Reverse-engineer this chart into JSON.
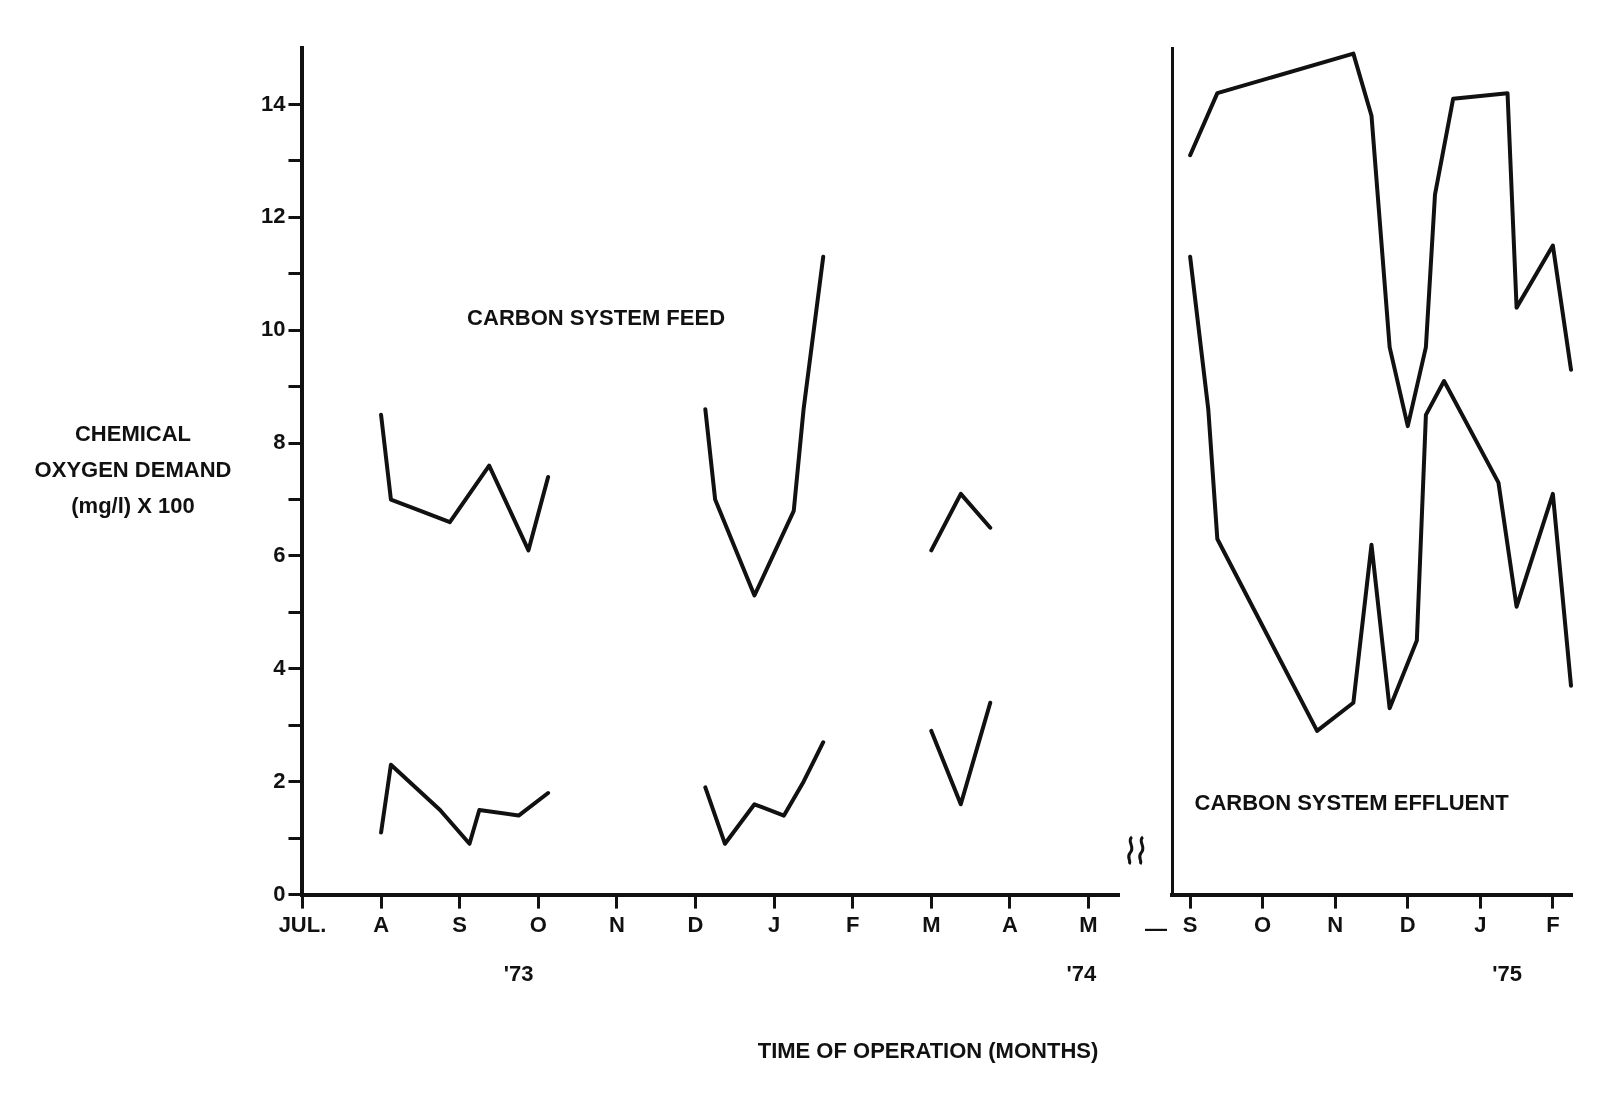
{
  "chart_data": [
    {
      "type": "line",
      "xlabel": "TIME OF OPERATION (MONTHS)",
      "ylabel": "CHEMICAL\nOXYGEN DEMAND\n(mg/l) X 100",
      "ylim": [
        0,
        15
      ],
      "categories": [
        "JUL.",
        null,
        null,
        null,
        null,
        null,
        null,
        null,
        "A",
        null,
        null,
        null,
        null,
        null,
        null,
        null,
        "S",
        null,
        null,
        null,
        null,
        null,
        null,
        null,
        "O",
        null,
        null,
        null,
        null,
        null,
        null,
        null,
        "N",
        null,
        null,
        null,
        null,
        null,
        null,
        null,
        "D",
        null,
        null,
        null,
        null,
        null,
        null,
        null,
        "J",
        null,
        null,
        null,
        null,
        null,
        null,
        null,
        "F",
        null,
        null,
        null,
        null,
        null,
        null,
        null,
        "M",
        null,
        null,
        null,
        null,
        null,
        null,
        null,
        "A",
        null,
        null,
        null,
        null,
        null,
        null,
        null,
        "M",
        null,
        null,
        null
      ],
      "yticks": [
        0,
        {
          "value": 1,
          "label": null
        },
        2,
        {
          "value": 3,
          "label": null
        },
        4,
        {
          "value": 5,
          "label": null
        },
        6,
        {
          "value": 7,
          "label": null
        },
        8,
        {
          "value": 9,
          "label": null
        },
        10,
        {
          "value": 11,
          "label": null
        },
        12,
        {
          "value": 13,
          "label": null
        },
        14
      ],
      "annotations": [
        "'73",
        "'74"
      ],
      "grid": false,
      "legend": false,
      "marker": "none",
      "line_style": "solid",
      "series": [
        {
          "name": "CARBON SYSTEM FEED",
          "color": "#111111",
          "values": [
            null,
            null,
            null,
            null,
            null,
            null,
            null,
            null,
            8.5,
            7.0,
            null,
            null,
            null,
            null,
            null,
            6.6,
            null,
            null,
            null,
            7.6,
            null,
            null,
            null,
            6.1,
            null,
            7.4,
            null,
            null,
            null,
            null,
            null,
            null,
            null,
            null,
            null,
            null,
            null,
            null,
            null,
            null,
            null,
            null,
            null,
            null,
            null,
            null,
            null,
            null,
            null,
            null,
            null,
            null,
            null,
            null,
            null,
            null,
            null,
            null,
            null,
            null,
            null,
            null,
            null,
            null,
            null,
            null,
            null,
            null,
            null,
            null,
            null,
            null,
            null,
            null,
            null,
            null,
            null,
            null,
            null,
            null,
            null,
            null,
            null,
            null
          ]
        },
        {
          "color": "#111111",
          "values": [
            null,
            null,
            null,
            null,
            null,
            null,
            null,
            null,
            null,
            null,
            null,
            null,
            null,
            null,
            null,
            null,
            null,
            null,
            null,
            null,
            null,
            null,
            null,
            null,
            null,
            null,
            null,
            null,
            null,
            null,
            null,
            null,
            null,
            null,
            null,
            null,
            null,
            null,
            null,
            null,
            null,
            8.6,
            7.0,
            null,
            null,
            null,
            5.3,
            null,
            null,
            null,
            6.8,
            8.6,
            null,
            11.3,
            null,
            null,
            null,
            null,
            null,
            null,
            null,
            null,
            null,
            null,
            null,
            null,
            null,
            null,
            null,
            null,
            null,
            null,
            null,
            null,
            null,
            null,
            null,
            null,
            null,
            null,
            null,
            null,
            null,
            null
          ]
        },
        {
          "color": "#111111",
          "values": [
            null,
            null,
            null,
            null,
            null,
            null,
            null,
            null,
            null,
            null,
            null,
            null,
            null,
            null,
            null,
            null,
            null,
            null,
            null,
            null,
            null,
            null,
            null,
            null,
            null,
            null,
            null,
            null,
            null,
            null,
            null,
            null,
            null,
            null,
            null,
            null,
            null,
            null,
            null,
            null,
            null,
            null,
            null,
            null,
            null,
            null,
            null,
            null,
            null,
            null,
            null,
            null,
            null,
            null,
            null,
            null,
            null,
            null,
            null,
            null,
            null,
            null,
            null,
            null,
            6.1,
            null,
            null,
            7.1,
            null,
            null,
            6.5,
            null,
            null,
            null,
            null,
            null,
            null,
            null,
            null,
            null,
            null,
            null,
            null,
            null
          ]
        },
        {
          "color": "#111111",
          "values": [
            null,
            null,
            null,
            null,
            null,
            null,
            null,
            null,
            1.1,
            2.3,
            null,
            null,
            null,
            null,
            1.5,
            null,
            null,
            0.9,
            1.5,
            null,
            null,
            null,
            1.4,
            null,
            null,
            1.8,
            null,
            null,
            null,
            null,
            null,
            null,
            null,
            null,
            null,
            null,
            null,
            null,
            null,
            null,
            null,
            null,
            null,
            null,
            null,
            null,
            null,
            null,
            null,
            null,
            null,
            null,
            null,
            null,
            null,
            null,
            null,
            null,
            null,
            null,
            null,
            null,
            null,
            null,
            null,
            null,
            null,
            null,
            null,
            null,
            null,
            null,
            null,
            null,
            null,
            null,
            null,
            null,
            null,
            null,
            null,
            null,
            null,
            null
          ]
        },
        {
          "color": "#111111",
          "values": [
            null,
            null,
            null,
            null,
            null,
            null,
            null,
            null,
            null,
            null,
            null,
            null,
            null,
            null,
            null,
            null,
            null,
            null,
            null,
            null,
            null,
            null,
            null,
            null,
            null,
            null,
            null,
            null,
            null,
            null,
            null,
            null,
            null,
            null,
            null,
            null,
            null,
            null,
            null,
            null,
            null,
            1.9,
            null,
            0.9,
            null,
            null,
            1.6,
            null,
            null,
            1.4,
            null,
            2.0,
            null,
            2.7,
            null,
            null,
            null,
            null,
            null,
            null,
            null,
            null,
            null,
            null,
            null,
            null,
            null,
            null,
            null,
            null,
            null,
            null,
            null,
            null,
            null,
            null,
            null,
            null,
            null,
            null,
            null,
            null,
            null,
            null
          ]
        },
        {
          "color": "#111111",
          "values": [
            null,
            null,
            null,
            null,
            null,
            null,
            null,
            null,
            null,
            null,
            null,
            null,
            null,
            null,
            null,
            null,
            null,
            null,
            null,
            null,
            null,
            null,
            null,
            null,
            null,
            null,
            null,
            null,
            null,
            null,
            null,
            null,
            null,
            null,
            null,
            null,
            null,
            null,
            null,
            null,
            null,
            null,
            null,
            null,
            null,
            null,
            null,
            null,
            null,
            null,
            null,
            null,
            null,
            null,
            null,
            null,
            null,
            null,
            null,
            null,
            null,
            null,
            null,
            null,
            2.9,
            null,
            null,
            1.6,
            null,
            null,
            3.4,
            null,
            null,
            null,
            null,
            null,
            null,
            null,
            null,
            null,
            null,
            null,
            null,
            null
          ]
        }
      ]
    },
    {
      "type": "line",
      "ylim": [
        0,
        15
      ],
      "tick_labels": "x",
      "categories": [
        null,
        null,
        "S",
        null,
        null,
        null,
        null,
        null,
        null,
        null,
        "O",
        null,
        null,
        null,
        null,
        null,
        null,
        null,
        "N",
        null,
        null,
        null,
        null,
        null,
        null,
        null,
        "D",
        null,
        null,
        null,
        null,
        null,
        null,
        null,
        "J",
        null,
        null,
        null,
        null,
        null,
        null,
        null,
        "F",
        null,
        null
      ],
      "yticks": [
        0,
        2,
        4,
        6,
        8,
        10,
        12,
        14
      ],
      "annotations": [
        "—",
        "'75"
      ],
      "grid": false,
      "legend": false,
      "marker": "none",
      "line_style": "solid",
      "series": [
        {
          "color": "#111111",
          "values": [
            null,
            null,
            13.1,
            null,
            null,
            14.2,
            null,
            null,
            null,
            null,
            null,
            null,
            null,
            null,
            null,
            null,
            null,
            null,
            null,
            null,
            14.9,
            null,
            13.8,
            null,
            9.7,
            null,
            8.3,
            null,
            9.7,
            12.4,
            null,
            14.1,
            null,
            null,
            null,
            null,
            null,
            14.2,
            10.4,
            null,
            null,
            null,
            11.5,
            null,
            9.3
          ]
        },
        {
          "name": "CARBON SYSTEM EFFLUENT",
          "color": "#111111",
          "values": [
            null,
            null,
            11.3,
            null,
            8.6,
            6.3,
            null,
            null,
            null,
            null,
            null,
            null,
            null,
            null,
            null,
            null,
            2.9,
            null,
            null,
            null,
            3.4,
            null,
            6.2,
            null,
            3.3,
            null,
            null,
            4.5,
            8.5,
            null,
            9.1,
            null,
            null,
            null,
            null,
            null,
            7.3,
            null,
            5.1,
            null,
            null,
            null,
            7.1,
            null,
            3.7
          ]
        }
      ]
    }
  ]
}
